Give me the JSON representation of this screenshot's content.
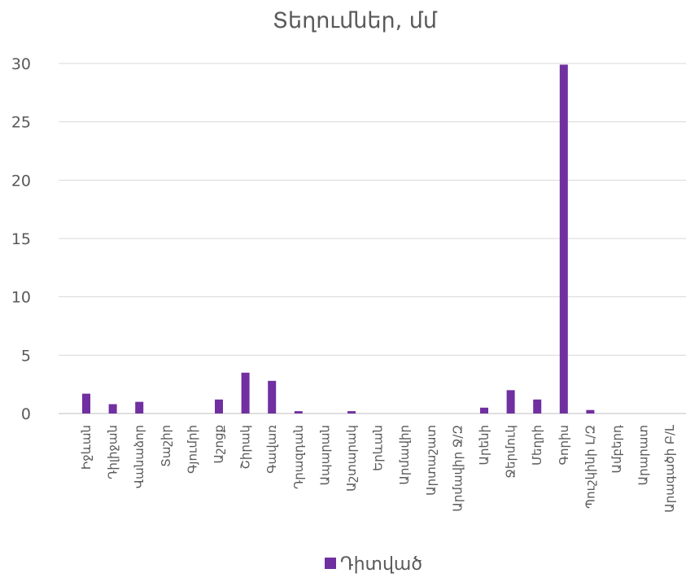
{
  "chart_data": {
    "type": "bar",
    "title": "Տեղումներ, մմ",
    "xlabel": "",
    "ylabel": "",
    "ylim": [
      0,
      30
    ],
    "yticks": [
      0,
      5,
      10,
      15,
      20,
      25,
      30
    ],
    "grid": true,
    "legend_position": "bottom",
    "categories": [
      "Իջևան",
      "Դիլիջան",
      "Վանաձոր",
      "Տաշիր",
      "Գյումրի",
      "Աշոցք",
      "Շիրակ",
      "Գավառ",
      "Դրազդան",
      "Ապարան",
      "Աշտարակ",
      "Երևան",
      "Արմավիր",
      "Արտաշատ",
      "Արմավիր Ջ/Զ",
      "Արենի",
      "Ջերմուկ",
      "Մեղրի",
      "Գորիս",
      "Պուշկինի Լ/Զ",
      "Ամբերդ",
      "Արարատ",
      "Արագածի Բ/Լ"
    ],
    "series": [
      {
        "name": "Դիտված",
        "color": "#7030A0",
        "values": [
          1.7,
          0.8,
          1.0,
          0,
          0,
          1.2,
          3.5,
          2.8,
          0.2,
          0,
          0.2,
          0,
          0,
          0,
          0,
          0.5,
          2.0,
          1.2,
          29.9,
          0.3,
          0,
          0,
          0
        ]
      }
    ]
  }
}
